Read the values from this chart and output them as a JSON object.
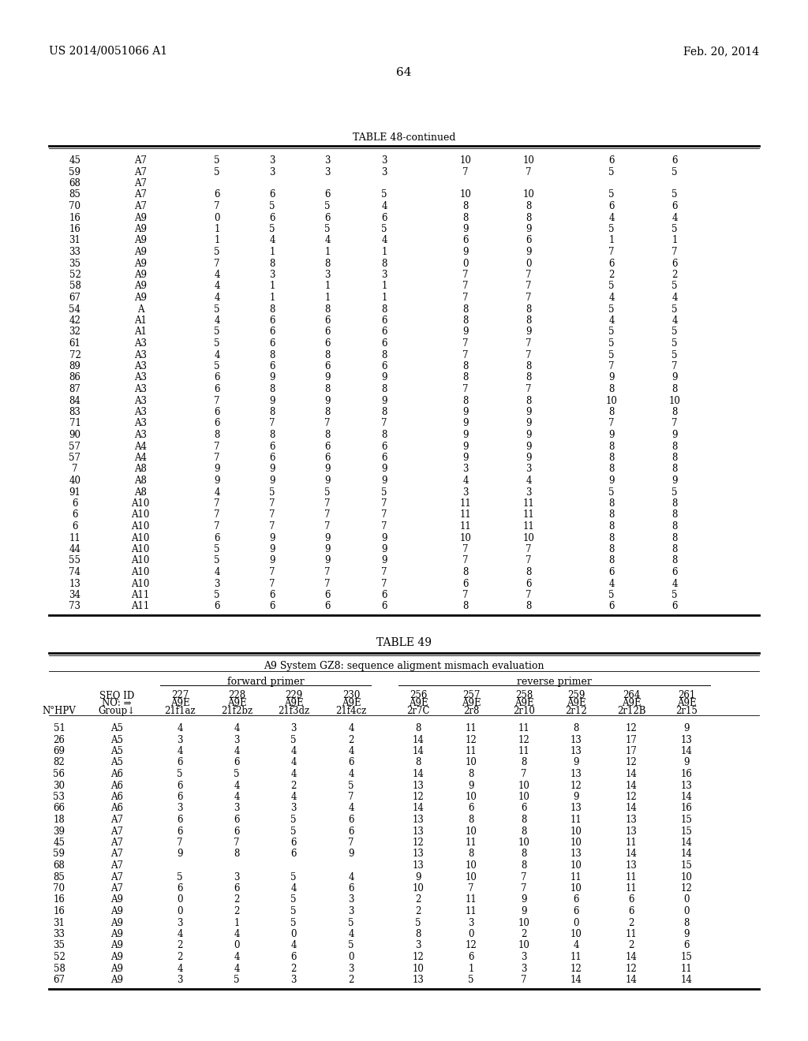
{
  "header_left": "US 2014/0051066 A1",
  "header_right": "Feb. 20, 2014",
  "page_number": "64",
  "table48_title": "TABLE 48-continued",
  "table48_rows": [
    [
      "45",
      "A7",
      "5",
      "3",
      "3",
      "3",
      "10",
      "10",
      "6",
      "6"
    ],
    [
      "59",
      "A7",
      "5",
      "3",
      "3",
      "3",
      "7",
      "7",
      "5",
      "5"
    ],
    [
      "68",
      "A7",
      "",
      "",
      "",
      "",
      "",
      "",
      "",
      ""
    ],
    [
      "85",
      "A7",
      "6",
      "6",
      "6",
      "5",
      "10",
      "10",
      "5",
      "5"
    ],
    [
      "70",
      "A7",
      "7",
      "5",
      "5",
      "4",
      "8",
      "8",
      "6",
      "6"
    ],
    [
      "16",
      "A9",
      "0",
      "6",
      "6",
      "6",
      "8",
      "8",
      "4",
      "4"
    ],
    [
      "16",
      "A9",
      "1",
      "5",
      "5",
      "5",
      "9",
      "9",
      "5",
      "5"
    ],
    [
      "31",
      "A9",
      "1",
      "4",
      "4",
      "4",
      "6",
      "6",
      "1",
      "1"
    ],
    [
      "33",
      "A9",
      "5",
      "1",
      "1",
      "1",
      "9",
      "9",
      "7",
      "7"
    ],
    [
      "35",
      "A9",
      "7",
      "8",
      "8",
      "8",
      "0",
      "0",
      "6",
      "6"
    ],
    [
      "52",
      "A9",
      "4",
      "3",
      "3",
      "3",
      "7",
      "7",
      "2",
      "2"
    ],
    [
      "58",
      "A9",
      "4",
      "1",
      "1",
      "1",
      "7",
      "7",
      "5",
      "5"
    ],
    [
      "67",
      "A9",
      "4",
      "1",
      "1",
      "1",
      "7",
      "7",
      "4",
      "4"
    ],
    [
      "54",
      "A",
      "5",
      "8",
      "8",
      "8",
      "8",
      "8",
      "5",
      "5"
    ],
    [
      "42",
      "A1",
      "4",
      "6",
      "6",
      "6",
      "8",
      "8",
      "4",
      "4"
    ],
    [
      "32",
      "A1",
      "5",
      "6",
      "6",
      "6",
      "9",
      "9",
      "5",
      "5"
    ],
    [
      "61",
      "A3",
      "5",
      "6",
      "6",
      "6",
      "7",
      "7",
      "5",
      "5"
    ],
    [
      "72",
      "A3",
      "4",
      "8",
      "8",
      "8",
      "7",
      "7",
      "5",
      "5"
    ],
    [
      "89",
      "A3",
      "5",
      "6",
      "6",
      "6",
      "8",
      "8",
      "7",
      "7"
    ],
    [
      "86",
      "A3",
      "6",
      "9",
      "9",
      "9",
      "8",
      "8",
      "9",
      "9"
    ],
    [
      "87",
      "A3",
      "6",
      "8",
      "8",
      "8",
      "7",
      "7",
      "8",
      "8"
    ],
    [
      "84",
      "A3",
      "7",
      "9",
      "9",
      "9",
      "8",
      "8",
      "10",
      "10"
    ],
    [
      "83",
      "A3",
      "6",
      "8",
      "8",
      "8",
      "9",
      "9",
      "8",
      "8"
    ],
    [
      "71",
      "A3",
      "6",
      "7",
      "7",
      "7",
      "9",
      "9",
      "7",
      "7"
    ],
    [
      "90",
      "A3",
      "8",
      "8",
      "8",
      "8",
      "9",
      "9",
      "9",
      "9"
    ],
    [
      "57",
      "A4",
      "7",
      "6",
      "6",
      "6",
      "9",
      "9",
      "8",
      "8"
    ],
    [
      "57",
      "A4",
      "7",
      "6",
      "6",
      "6",
      "9",
      "9",
      "8",
      "8"
    ],
    [
      "7",
      "A8",
      "9",
      "9",
      "9",
      "9",
      "3",
      "3",
      "8",
      "8"
    ],
    [
      "40",
      "A8",
      "9",
      "9",
      "9",
      "9",
      "4",
      "4",
      "9",
      "9"
    ],
    [
      "91",
      "A8",
      "4",
      "5",
      "5",
      "5",
      "3",
      "3",
      "5",
      "5"
    ],
    [
      "6",
      "A10",
      "7",
      "7",
      "7",
      "7",
      "11",
      "11",
      "8",
      "8"
    ],
    [
      "6",
      "A10",
      "7",
      "7",
      "7",
      "7",
      "11",
      "11",
      "8",
      "8"
    ],
    [
      "6",
      "A10",
      "7",
      "7",
      "7",
      "7",
      "11",
      "11",
      "8",
      "8"
    ],
    [
      "11",
      "A10",
      "6",
      "9",
      "9",
      "9",
      "10",
      "10",
      "8",
      "8"
    ],
    [
      "44",
      "A10",
      "5",
      "9",
      "9",
      "9",
      "7",
      "7",
      "8",
      "8"
    ],
    [
      "55",
      "A10",
      "5",
      "9",
      "9",
      "9",
      "7",
      "7",
      "8",
      "8"
    ],
    [
      "74",
      "A10",
      "4",
      "7",
      "7",
      "7",
      "8",
      "8",
      "6",
      "6"
    ],
    [
      "13",
      "A10",
      "3",
      "7",
      "7",
      "7",
      "6",
      "6",
      "4",
      "4"
    ],
    [
      "34",
      "A11",
      "5",
      "6",
      "6",
      "6",
      "7",
      "7",
      "5",
      "5"
    ],
    [
      "73",
      "A11",
      "6",
      "6",
      "6",
      "6",
      "8",
      "8",
      "6",
      "6"
    ]
  ],
  "table49_title": "TABLE 49",
  "table49_subtitle": "A9 System GZ8: sequence aligment mismach evaluation",
  "table49_header1": "forward primer",
  "table49_header2": "reverse primer",
  "table49_col_labels_row1": [
    "",
    "SEQ ID",
    "227",
    "228",
    "229",
    "230",
    "256",
    "257",
    "258",
    "259",
    "264",
    "261"
  ],
  "table49_col_labels_row2": [
    "",
    "NO: ⇒",
    "A9E",
    "A9E",
    "A9E",
    "A9E",
    "A9E",
    "A9E",
    "A9E",
    "A9E",
    "A9E",
    "A9E"
  ],
  "table49_col_labels_row3": [
    "N°HPV",
    "Group↓",
    "21f1az",
    "21f2bz",
    "21f3dz",
    "21f4cz",
    "2r7C",
    "2r8",
    "2r10",
    "2r12",
    "2r12B",
    "2r15"
  ],
  "table49_rows": [
    [
      "51",
      "A5",
      "4",
      "4",
      "3",
      "4",
      "8",
      "11",
      "11",
      "8",
      "12",
      "9"
    ],
    [
      "26",
      "A5",
      "3",
      "3",
      "5",
      "2",
      "14",
      "12",
      "12",
      "13",
      "17",
      "13"
    ],
    [
      "69",
      "A5",
      "4",
      "4",
      "4",
      "4",
      "14",
      "11",
      "11",
      "13",
      "17",
      "14"
    ],
    [
      "82",
      "A5",
      "6",
      "6",
      "4",
      "6",
      "8",
      "10",
      "8",
      "9",
      "12",
      "9"
    ],
    [
      "56",
      "A6",
      "5",
      "5",
      "4",
      "4",
      "14",
      "8",
      "7",
      "13",
      "14",
      "16"
    ],
    [
      "30",
      "A6",
      "6",
      "4",
      "2",
      "5",
      "13",
      "9",
      "10",
      "12",
      "14",
      "13"
    ],
    [
      "53",
      "A6",
      "6",
      "4",
      "4",
      "7",
      "12",
      "10",
      "10",
      "9",
      "12",
      "14"
    ],
    [
      "66",
      "A6",
      "3",
      "3",
      "3",
      "4",
      "14",
      "6",
      "6",
      "13",
      "14",
      "16"
    ],
    [
      "18",
      "A7",
      "6",
      "6",
      "5",
      "6",
      "13",
      "8",
      "8",
      "11",
      "13",
      "15"
    ],
    [
      "39",
      "A7",
      "6",
      "6",
      "5",
      "6",
      "13",
      "10",
      "8",
      "10",
      "13",
      "15"
    ],
    [
      "45",
      "A7",
      "7",
      "7",
      "6",
      "7",
      "12",
      "11",
      "10",
      "10",
      "11",
      "14"
    ],
    [
      "59",
      "A7",
      "9",
      "8",
      "6",
      "9",
      "13",
      "8",
      "8",
      "13",
      "14",
      "14"
    ],
    [
      "68",
      "A7",
      "",
      "",
      "",
      "",
      "13",
      "10",
      "8",
      "10",
      "13",
      "15"
    ],
    [
      "85",
      "A7",
      "5",
      "3",
      "5",
      "4",
      "9",
      "10",
      "7",
      "11",
      "11",
      "10"
    ],
    [
      "70",
      "A7",
      "6",
      "6",
      "4",
      "6",
      "10",
      "7",
      "7",
      "10",
      "11",
      "12"
    ],
    [
      "16",
      "A9",
      "0",
      "2",
      "5",
      "3",
      "2",
      "11",
      "9",
      "6",
      "6",
      "0"
    ],
    [
      "16",
      "A9",
      "0",
      "2",
      "5",
      "3",
      "2",
      "11",
      "9",
      "6",
      "6",
      "0"
    ],
    [
      "31",
      "A9",
      "3",
      "1",
      "5",
      "5",
      "5",
      "3",
      "10",
      "0",
      "2",
      "8"
    ],
    [
      "33",
      "A9",
      "4",
      "4",
      "0",
      "4",
      "8",
      "0",
      "2",
      "10",
      "11",
      "9"
    ],
    [
      "35",
      "A9",
      "2",
      "0",
      "4",
      "5",
      "3",
      "12",
      "10",
      "4",
      "2",
      "6"
    ],
    [
      "52",
      "A9",
      "2",
      "4",
      "6",
      "0",
      "12",
      "6",
      "3",
      "11",
      "14",
      "15"
    ],
    [
      "58",
      "A9",
      "4",
      "4",
      "2",
      "3",
      "10",
      "1",
      "3",
      "12",
      "12",
      "11"
    ],
    [
      "67",
      "A9",
      "3",
      "5",
      "3",
      "2",
      "13",
      "5",
      "7",
      "14",
      "14",
      "14"
    ]
  ]
}
